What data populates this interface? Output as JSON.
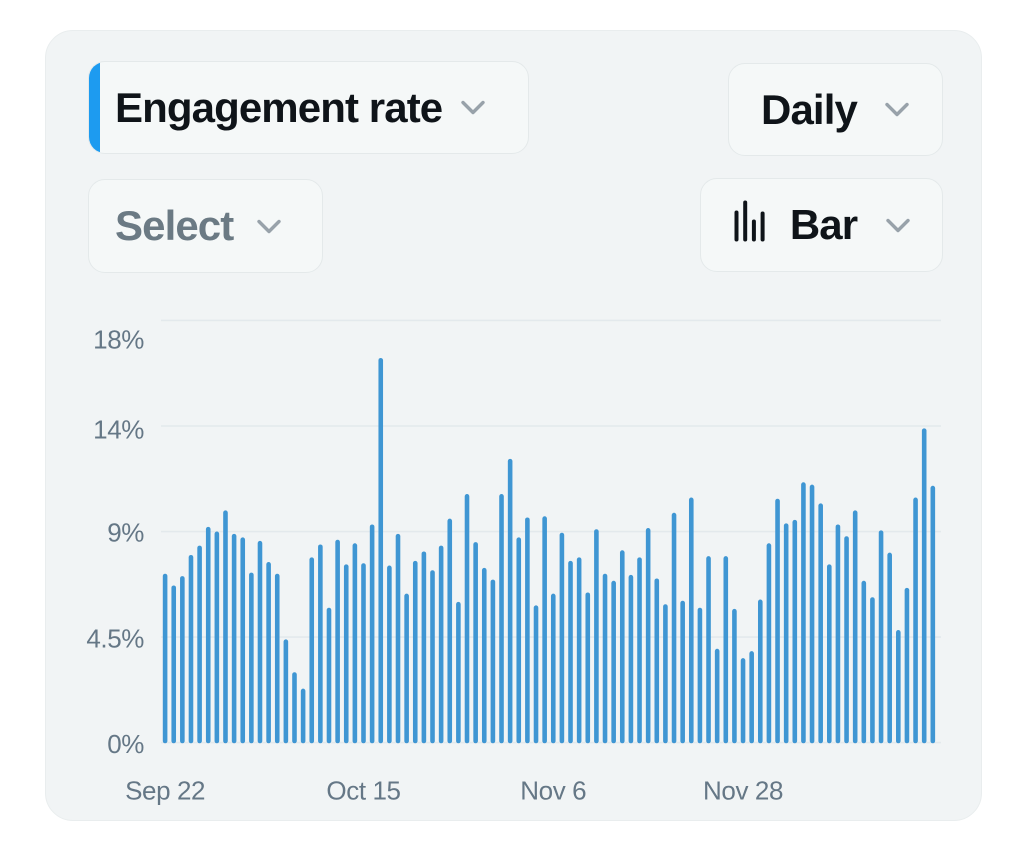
{
  "controls": {
    "metric_button": {
      "label": "Engagement rate",
      "accent_color": "#1d9bf0",
      "chevron_icon": "chevron-down"
    },
    "daily_button": {
      "label": "Daily",
      "chevron_icon": "chevron-down"
    },
    "select_button": {
      "label": "Select",
      "chevron_icon": "chevron-down"
    },
    "chart_type_button": {
      "label": "Bar",
      "icon": "bar-chart",
      "chevron_icon": "chevron-down"
    }
  },
  "chart_data": {
    "type": "bar",
    "title": "Engagement rate",
    "unit": "%",
    "x": [
      "Sep 22",
      "Sep 23",
      "Sep 24",
      "Sep 25",
      "Sep 26",
      "Sep 27",
      "Sep 28",
      "Sep 29",
      "Sep 30",
      "Oct 1",
      "Oct 2",
      "Oct 3",
      "Oct 4",
      "Oct 5",
      "Oct 6",
      "Oct 7",
      "Oct 8",
      "Oct 9",
      "Oct 10",
      "Oct 11",
      "Oct 12",
      "Oct 13",
      "Oct 14",
      "Oct 15",
      "Oct 16",
      "Oct 17",
      "Oct 18",
      "Oct 19",
      "Oct 20",
      "Oct 21",
      "Oct 22",
      "Oct 23",
      "Oct 24",
      "Oct 25",
      "Oct 26",
      "Oct 27",
      "Oct 28",
      "Oct 29",
      "Oct 30",
      "Oct 31",
      "Nov 1",
      "Nov 2",
      "Nov 3",
      "Nov 4",
      "Nov 5",
      "Nov 6",
      "Nov 7",
      "Nov 8",
      "Nov 9",
      "Nov 10",
      "Nov 11",
      "Nov 12",
      "Nov 13",
      "Nov 14",
      "Nov 15",
      "Nov 16",
      "Nov 17",
      "Nov 18",
      "Nov 19",
      "Nov 20",
      "Nov 21",
      "Nov 22",
      "Nov 23",
      "Nov 24",
      "Nov 25",
      "Nov 26",
      "Nov 27",
      "Nov 28",
      "Nov 29",
      "Nov 30",
      "Dec 1",
      "Dec 2",
      "Dec 3",
      "Dec 4",
      "Dec 5",
      "Dec 6",
      "Dec 7",
      "Dec 8",
      "Dec 9",
      "Dec 10",
      "Dec 11",
      "Dec 12",
      "Dec 13",
      "Dec 14",
      "Dec 15",
      "Dec 16",
      "Dec 17",
      "Dec 18",
      "Dec 19",
      "Dec 20"
    ],
    "values": [
      7.2,
      6.7,
      7.1,
      8.0,
      8.4,
      9.2,
      9.0,
      9.9,
      8.9,
      8.75,
      7.25,
      8.6,
      7.7,
      7.2,
      4.4,
      3.0,
      2.3,
      7.9,
      8.45,
      5.75,
      8.65,
      7.6,
      8.5,
      7.65,
      9.3,
      16.4,
      7.55,
      8.9,
      6.35,
      7.75,
      8.15,
      7.35,
      8.4,
      9.55,
      6.0,
      10.6,
      8.55,
      7.45,
      6.95,
      10.6,
      12.1,
      8.75,
      9.6,
      5.85,
      9.65,
      6.35,
      8.95,
      7.75,
      7.9,
      6.4,
      9.1,
      7.2,
      6.9,
      8.2,
      7.15,
      7.9,
      9.15,
      7.0,
      5.9,
      9.8,
      6.05,
      10.45,
      5.75,
      7.95,
      4.0,
      7.95,
      5.7,
      3.6,
      3.9,
      6.1,
      8.5,
      10.4,
      9.35,
      9.5,
      11.1,
      11.0,
      10.2,
      7.6,
      9.3,
      8.8,
      9.9,
      6.9,
      6.2,
      9.05,
      8.1,
      4.8,
      6.6,
      10.45,
      13.4,
      10.95
    ],
    "x_ticks": [
      {
        "label": "Sep 22",
        "index": 0
      },
      {
        "label": "Oct 15",
        "index": 23
      },
      {
        "label": "Nov 6",
        "index": 45
      },
      {
        "label": "Nov 28",
        "index": 67
      }
    ],
    "y_ticks": [
      {
        "label": "0%",
        "value": 0
      },
      {
        "label": "4.5%",
        "value": 4.5
      },
      {
        "label": "9%",
        "value": 9
      },
      {
        "label": "14%",
        "value": 13.5
      },
      {
        "label": "18%",
        "value": 18
      }
    ],
    "ylim": [
      0,
      18.1
    ],
    "grid": true,
    "legend": false,
    "bar_color": "#3f96d3",
    "gridline_color": "#e3e9ec",
    "axis_label_color": "#657786"
  }
}
